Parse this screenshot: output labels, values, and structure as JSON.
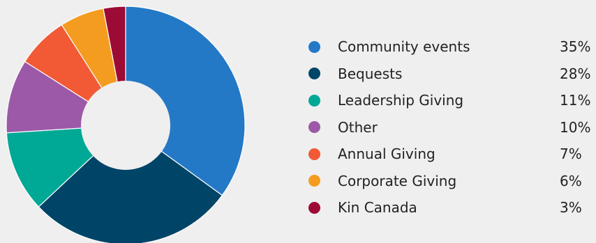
{
  "chart_data": {
    "type": "pie",
    "donut": true,
    "legend_position": "right",
    "slices": [
      {
        "label": "Community events",
        "value": 35,
        "value_label": "35%",
        "color": "#2379c6"
      },
      {
        "label": "Bequests",
        "value": 28,
        "value_label": "28%",
        "color": "#004567"
      },
      {
        "label": "Leadership Giving",
        "value": 11,
        "value_label": "11%",
        "color": "#00a896"
      },
      {
        "label": "Other",
        "value": 10,
        "value_label": "10%",
        "color": "#9b59a8"
      },
      {
        "label": "Annual Giving",
        "value": 7,
        "value_label": "7%",
        "color": "#f15a35"
      },
      {
        "label": "Corporate Giving",
        "value": 6,
        "value_label": "6%",
        "color": "#f49c1f"
      },
      {
        "label": "Kin Canada",
        "value": 3,
        "value_label": "3%",
        "color": "#9c0b35"
      }
    ]
  }
}
